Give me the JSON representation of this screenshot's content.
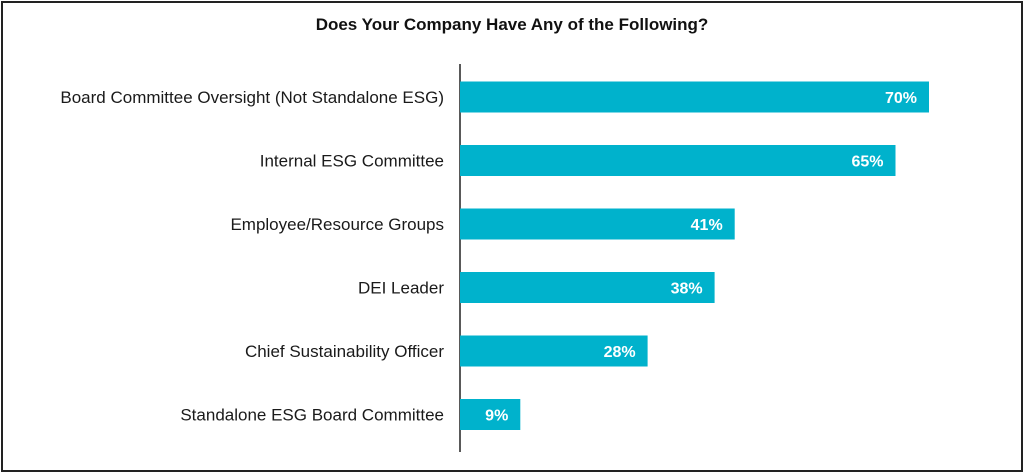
{
  "chart_data": {
    "type": "bar",
    "orientation": "horizontal",
    "title": "Does Your Company Have Any of the Following?",
    "categories": [
      "Board Committee Oversight (Not Standalone ESG)",
      "Internal ESG Committee",
      "Employee/Resource Groups",
      "DEI Leader",
      "Chief Sustainability Officer",
      "Standalone ESG Board Committee"
    ],
    "values": [
      70,
      65,
      41,
      38,
      28,
      9
    ],
    "value_labels": [
      "70%",
      "65%",
      "41%",
      "38%",
      "28%",
      "9%"
    ],
    "xlim": [
      0,
      100
    ],
    "xlabel": "",
    "ylabel": "",
    "grid": false,
    "legend": "none",
    "colors": {
      "bar": "#00B2CC",
      "label": "#ffffff",
      "axis": "#222222"
    }
  }
}
